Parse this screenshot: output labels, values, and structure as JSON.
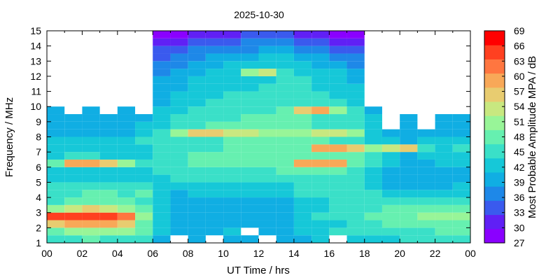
{
  "chart_data": {
    "type": "heatmap",
    "title": "2025-10-30",
    "xlabel": "UT Time / hrs",
    "ylabel": "Frequency / MHz",
    "colorbar_label": "Most Probable Amplitude MPA / dB",
    "xlim": [
      0,
      24
    ],
    "ylim": [
      1,
      15
    ],
    "x_ticks": [
      "00",
      "02",
      "04",
      "06",
      "08",
      "10",
      "12",
      "14",
      "16",
      "18",
      "20",
      "22",
      "00"
    ],
    "y_ticks": [
      "1",
      "2",
      "3",
      "4",
      "5",
      "6",
      "7",
      "8",
      "9",
      "10",
      "11",
      "12",
      "13",
      "14",
      "15"
    ],
    "colorbar_ticks": [
      "27",
      "30",
      "33",
      "36",
      "39",
      "42",
      "45",
      "48",
      "51",
      "54",
      "57",
      "60",
      "63",
      "66",
      "69"
    ],
    "colorbar_range": [
      27,
      69
    ],
    "colors": [
      "#8a00ff",
      "#6020f5",
      "#3a5aee",
      "#1e88e8",
      "#10aee3",
      "#16c8d8",
      "#3ae0c8",
      "#66f0b0",
      "#98f598",
      "#c8e880",
      "#e8cc70",
      "#f8a858",
      "#ff7640",
      "#ff4020",
      "#ff0000"
    ],
    "frequency_rows": [
      1.0,
      1.5,
      2.0,
      2.5,
      3.0,
      3.5,
      4.0,
      4.5,
      5.0,
      5.5,
      6.0,
      6.5,
      7.0,
      7.5,
      8.0,
      8.5,
      9.0,
      9.5,
      10.0,
      10.5,
      11.0,
      11.5,
      12.0,
      12.5,
      13.0,
      13.5,
      14.0,
      14.5
    ],
    "time_hours": [
      0,
      1,
      2,
      3,
      4,
      5,
      6,
      7,
      8,
      9,
      10,
      11,
      12,
      13,
      14,
      15,
      16,
      17,
      18,
      19,
      20,
      21,
      22,
      23
    ],
    "mpa_db": [
      [
        45,
        46,
        47,
        46,
        45,
        44,
        40,
        null,
        40,
        null,
        40,
        40,
        null,
        40,
        40,
        41,
        null,
        43,
        43,
        43,
        44,
        44,
        45,
        45
      ],
      [
        49,
        52,
        52,
        51,
        50,
        48,
        42,
        40,
        40,
        40,
        41,
        null,
        40,
        40,
        41,
        43,
        44,
        45,
        45,
        45,
        46,
        46,
        47,
        47
      ],
      [
        57,
        60,
        60,
        58,
        55,
        48,
        42,
        40,
        40,
        40,
        40,
        40,
        40,
        40,
        41,
        42,
        43,
        45,
        46,
        47,
        48,
        48,
        49,
        48
      ],
      [
        64,
        66,
        66,
        64,
        62,
        52,
        42,
        40,
        40,
        40,
        40,
        40,
        40,
        40,
        42,
        44,
        45,
        46,
        47,
        48,
        49,
        50,
        51,
        50
      ],
      [
        52,
        54,
        55,
        54,
        52,
        48,
        42,
        40,
        40,
        40,
        40,
        40,
        40,
        40,
        42,
        43,
        44,
        45,
        46,
        47,
        47,
        48,
        48,
        48
      ],
      [
        46,
        48,
        49,
        48,
        47,
        45,
        41,
        40,
        40,
        40,
        40,
        40,
        40,
        40,
        42,
        43,
        44,
        45,
        45,
        44,
        44,
        44,
        45,
        45
      ],
      [
        45,
        46,
        47,
        47,
        46,
        49,
        43,
        40,
        41,
        41,
        42,
        42,
        42,
        43,
        44,
        45,
        45,
        44,
        44,
        43,
        42,
        42,
        43,
        42
      ],
      [
        44,
        45,
        45,
        44,
        44,
        45,
        42,
        41,
        42,
        42,
        43,
        43,
        43,
        43,
        44,
        45,
        45,
        44,
        42,
        40,
        40,
        40,
        40,
        41
      ],
      [
        42,
        43,
        43,
        42,
        42,
        42,
        43,
        44,
        44,
        44,
        45,
        45,
        45,
        45,
        46,
        46,
        46,
        45,
        42,
        40,
        40,
        40,
        40,
        40
      ],
      [
        43,
        43,
        43,
        42,
        42,
        42,
        44,
        45,
        46,
        46,
        46,
        46,
        46,
        47,
        47,
        47,
        47,
        46,
        43,
        40,
        40,
        40,
        40,
        40
      ],
      [
        47,
        58,
        60,
        55,
        50,
        45,
        45,
        46,
        47,
        47,
        48,
        48,
        48,
        49,
        58,
        60,
        58,
        47,
        44,
        41,
        40,
        40,
        41,
        41
      ],
      [
        43,
        44,
        44,
        43,
        43,
        42,
        45,
        46,
        47,
        47,
        47,
        47,
        47,
        48,
        48,
        48,
        48,
        47,
        44,
        41,
        40,
        41,
        42,
        42
      ],
      [
        41,
        42,
        42,
        41,
        41,
        41,
        44,
        45,
        46,
        46,
        47,
        47,
        47,
        47,
        48,
        58,
        60,
        56,
        52,
        54,
        55,
        45,
        42,
        45
      ],
      [
        42,
        42,
        42,
        41,
        41,
        44,
        45,
        45,
        46,
        46,
        47,
        47,
        47,
        47,
        47,
        47,
        46,
        45,
        43,
        41,
        40,
        41,
        41,
        42
      ],
      [
        40,
        40,
        40,
        40,
        40,
        41,
        44,
        52,
        55,
        55,
        54,
        53,
        52,
        52,
        52,
        53,
        54,
        50,
        43,
        40,
        40,
        40,
        40,
        40
      ],
      [
        40,
        40,
        40,
        40,
        40,
        41,
        43,
        45,
        46,
        47,
        47,
        47,
        47,
        47,
        47,
        46,
        46,
        45,
        42,
        null,
        40,
        null,
        40,
        40
      ],
      [
        40,
        40,
        40,
        40,
        40,
        40,
        42,
        44,
        45,
        46,
        46,
        47,
        47,
        47,
        47,
        46,
        46,
        45,
        42,
        null,
        40,
        null,
        40,
        40
      ],
      [
        40,
        null,
        40,
        null,
        40,
        null,
        41,
        43,
        44,
        45,
        46,
        46,
        46,
        47,
        56,
        58,
        52,
        45,
        40,
        null,
        null,
        null,
        null,
        null
      ],
      [
        null,
        null,
        null,
        null,
        null,
        null,
        40,
        42,
        43,
        44,
        45,
        45,
        46,
        46,
        46,
        45,
        44,
        43,
        null,
        null,
        null,
        null,
        null,
        null
      ],
      [
        null,
        null,
        null,
        null,
        null,
        null,
        40,
        41,
        42,
        43,
        44,
        44,
        45,
        45,
        45,
        44,
        43,
        42,
        null,
        null,
        null,
        null,
        null,
        null
      ],
      [
        null,
        null,
        null,
        null,
        null,
        null,
        40,
        40,
        41,
        42,
        43,
        43,
        44,
        44,
        44,
        43,
        42,
        41,
        null,
        null,
        null,
        null,
        null,
        null
      ],
      [
        null,
        null,
        null,
        null,
        null,
        null,
        39,
        40,
        41,
        42,
        43,
        43,
        43,
        44,
        44,
        43,
        42,
        40,
        null,
        null,
        null,
        null,
        null,
        null
      ],
      [
        null,
        null,
        null,
        null,
        null,
        null,
        38,
        39,
        40,
        41,
        42,
        52,
        54,
        45,
        43,
        42,
        41,
        40,
        null,
        null,
        null,
        null,
        null,
        null
      ],
      [
        null,
        null,
        null,
        null,
        null,
        null,
        37,
        38,
        39,
        40,
        41,
        41,
        42,
        42,
        41,
        40,
        39,
        38,
        null,
        null,
        null,
        null,
        null,
        null
      ],
      [
        null,
        null,
        null,
        null,
        null,
        null,
        35,
        36,
        38,
        39,
        40,
        40,
        41,
        41,
        40,
        39,
        38,
        37,
        null,
        null,
        null,
        null,
        null,
        null
      ],
      [
        null,
        null,
        null,
        null,
        null,
        null,
        33,
        34,
        36,
        37,
        38,
        38,
        39,
        39,
        38,
        37,
        35,
        34,
        null,
        null,
        null,
        null,
        null,
        null
      ],
      [
        null,
        null,
        null,
        null,
        null,
        null,
        30,
        31,
        33,
        34,
        35,
        36,
        36,
        36,
        35,
        34,
        32,
        31,
        null,
        null,
        null,
        null,
        null,
        null
      ],
      [
        null,
        null,
        null,
        null,
        null,
        null,
        28,
        29,
        30,
        31,
        32,
        33,
        33,
        33,
        32,
        31,
        29,
        28,
        null,
        null,
        null,
        null,
        null,
        null
      ]
    ]
  }
}
